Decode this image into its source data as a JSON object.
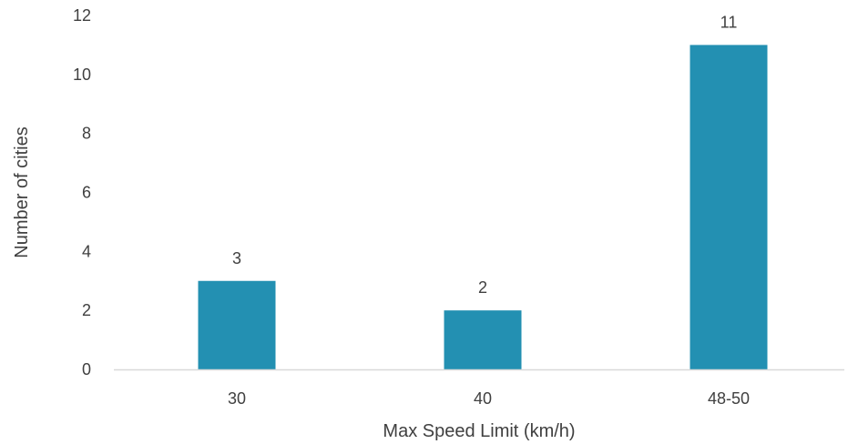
{
  "chart_data": {
    "type": "bar",
    "categories": [
      "30",
      "40",
      "48-50"
    ],
    "values": [
      3,
      2,
      11
    ],
    "data_labels": [
      "3",
      "2",
      "11"
    ],
    "xlabel": "Max Speed Limit (km/h)",
    "ylabel": "Number of cities",
    "ylim": [
      0,
      12
    ],
    "yticks": [
      0,
      2,
      4,
      6,
      8,
      10,
      12
    ],
    "grid": false,
    "legend": "none",
    "bar_color": "#2390B2",
    "axis_color": "#D9D9D9"
  }
}
